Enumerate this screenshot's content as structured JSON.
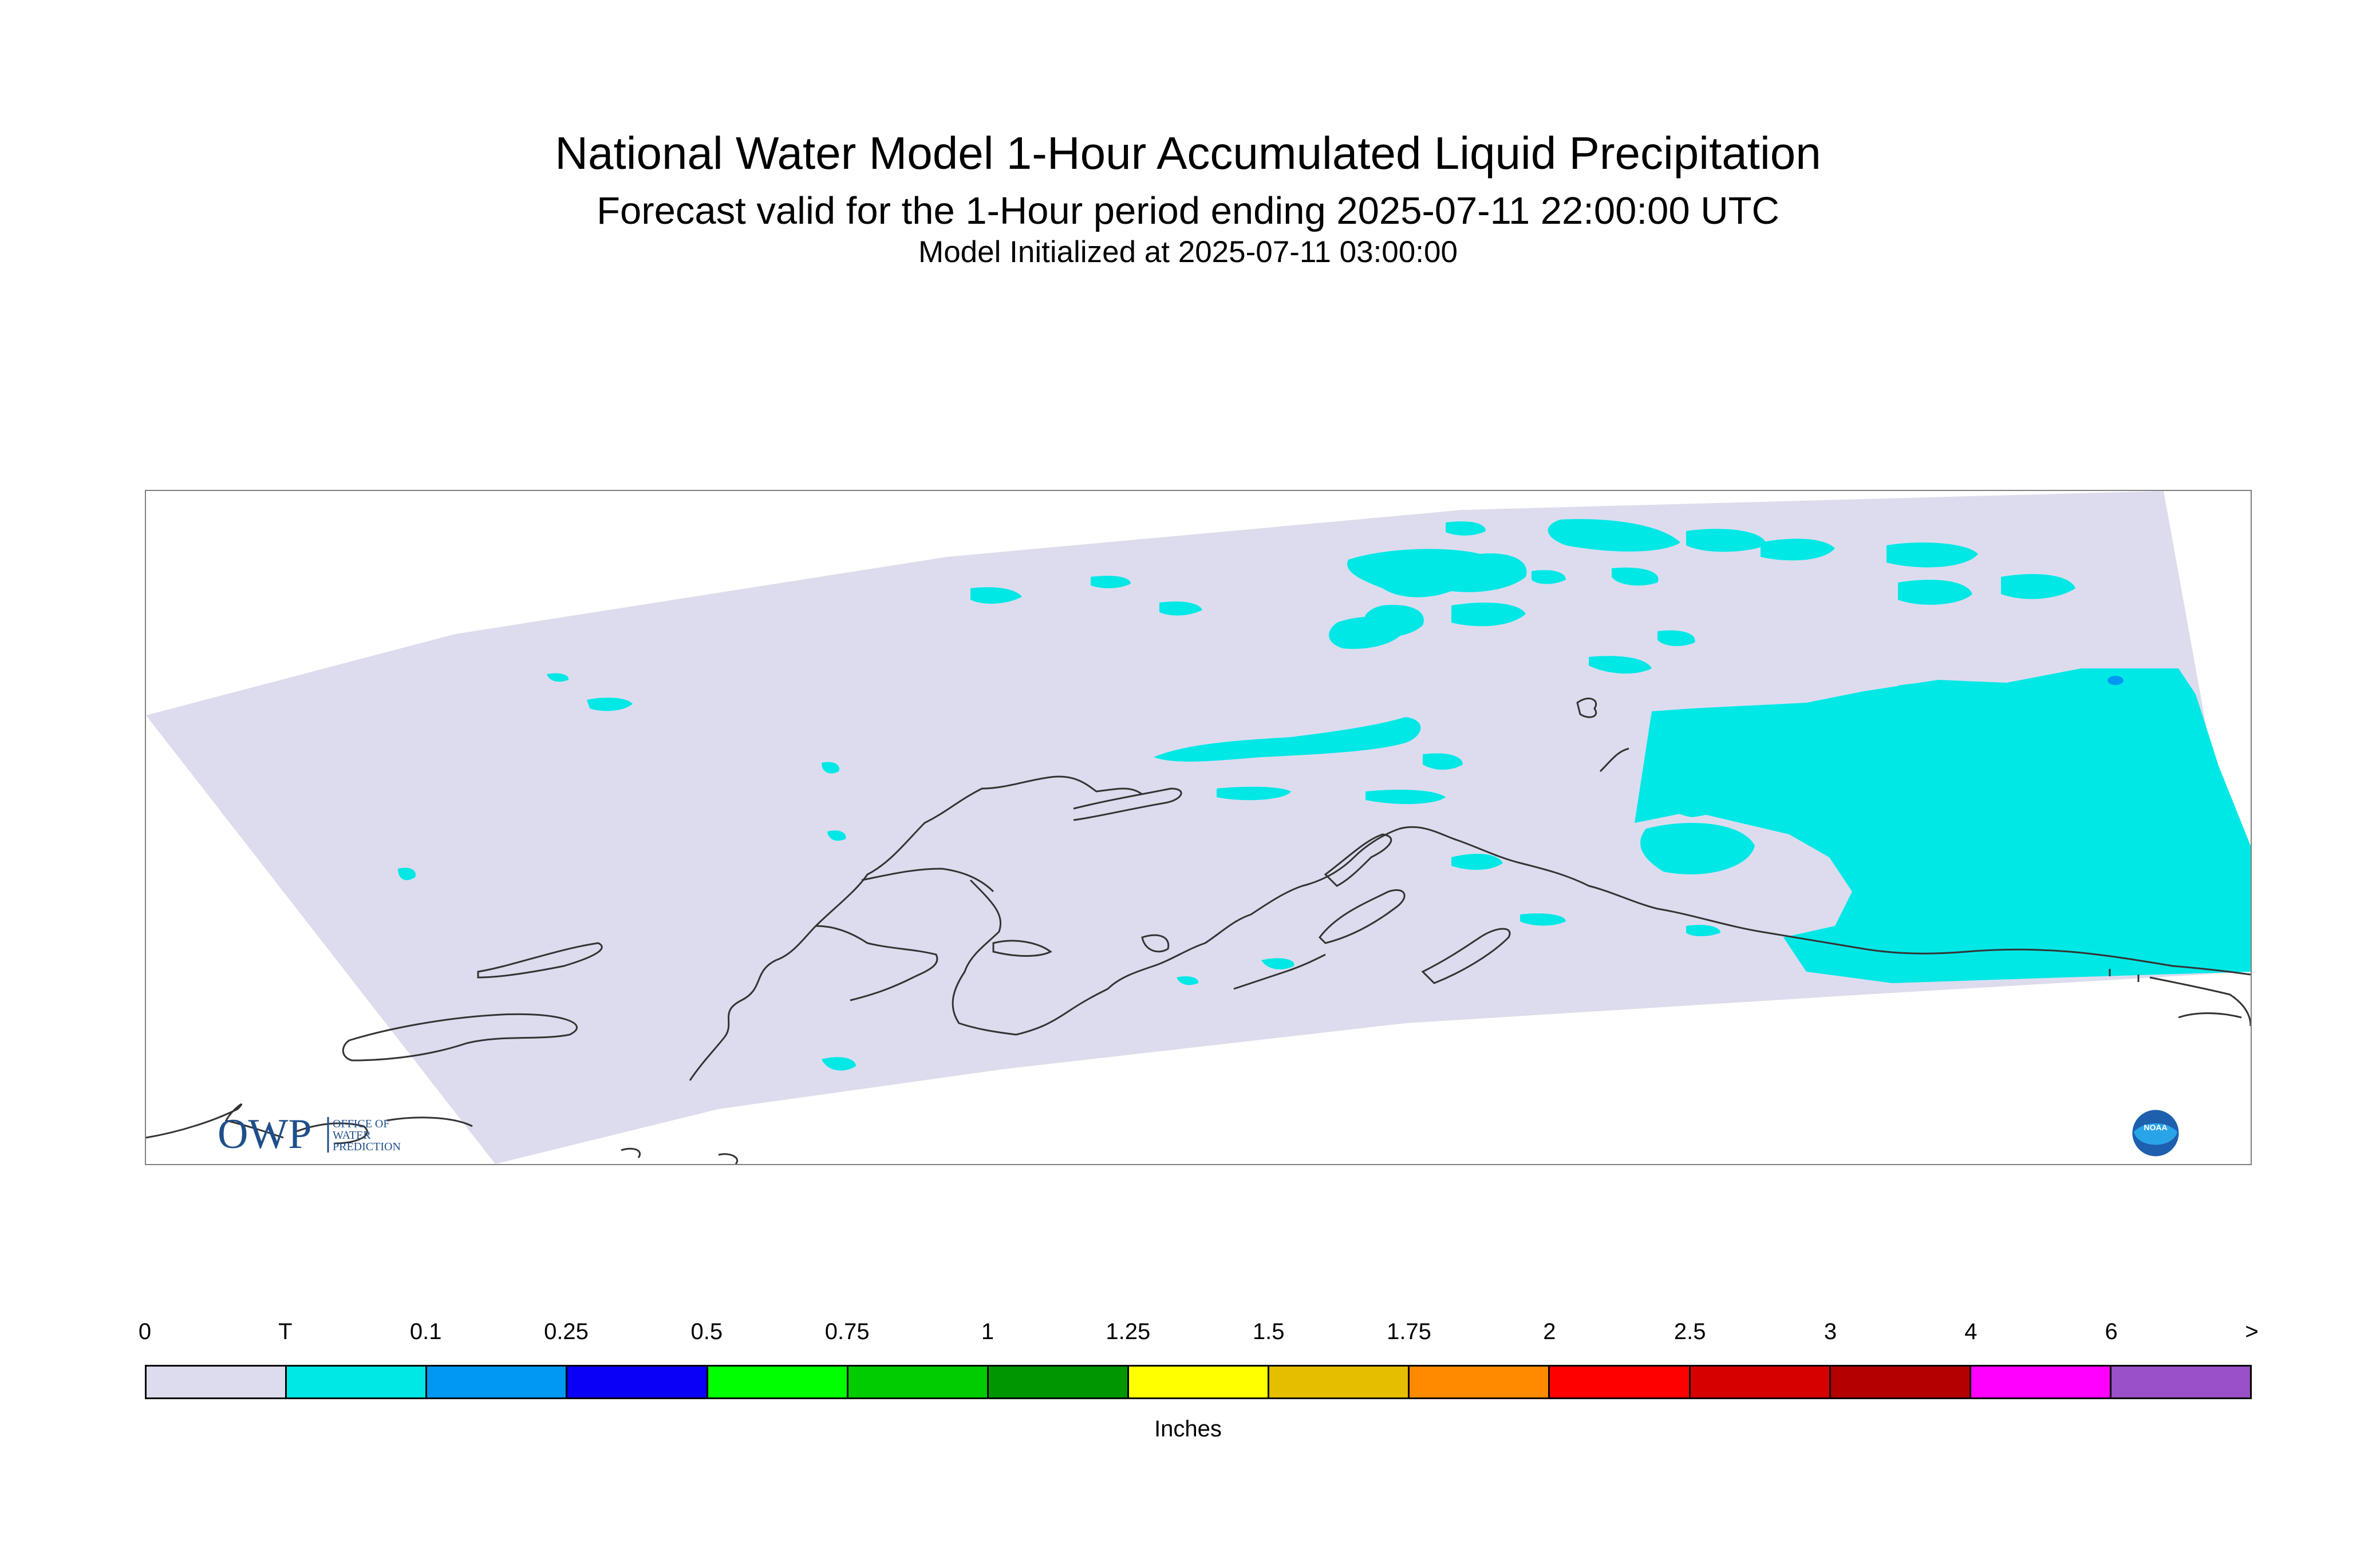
{
  "header": {
    "title": "National Water Model 1-Hour Accumulated Liquid Precipitation",
    "subtitle": "Forecast valid for the 1-Hour period ending 2025-07-11 22:00:00 UTC",
    "init_line": "Model Initialized at 2025-07-11 03:00:00"
  },
  "map": {
    "region_fill": "#dcdcee",
    "precip_trace_color": "#00e8e6",
    "precip_0_1_color": "#0098f2",
    "coastline_color": "#333333"
  },
  "logos": {
    "owp": {
      "mark": "OWP",
      "line1": "OFFICE OF",
      "line2": "WATER",
      "line3": "PREDICTION"
    },
    "noaa": {
      "mark": "NOAA"
    }
  },
  "legend": {
    "labels": [
      "0",
      "T",
      "0.1",
      "0.25",
      "0.5",
      "0.75",
      "1",
      "1.25",
      "1.5",
      "1.75",
      "2",
      "2.5",
      "3",
      "4",
      "6",
      ">"
    ],
    "colors": [
      "#dcdcee",
      "#00e8e6",
      "#0098f2",
      "#0a00f5",
      "#00ff00",
      "#00cc00",
      "#009600",
      "#ffff00",
      "#e6be00",
      "#ff8a00",
      "#ff0000",
      "#d60000",
      "#b40000",
      "#ff00ff",
      "#9a50c8"
    ],
    "units": "Inches"
  }
}
